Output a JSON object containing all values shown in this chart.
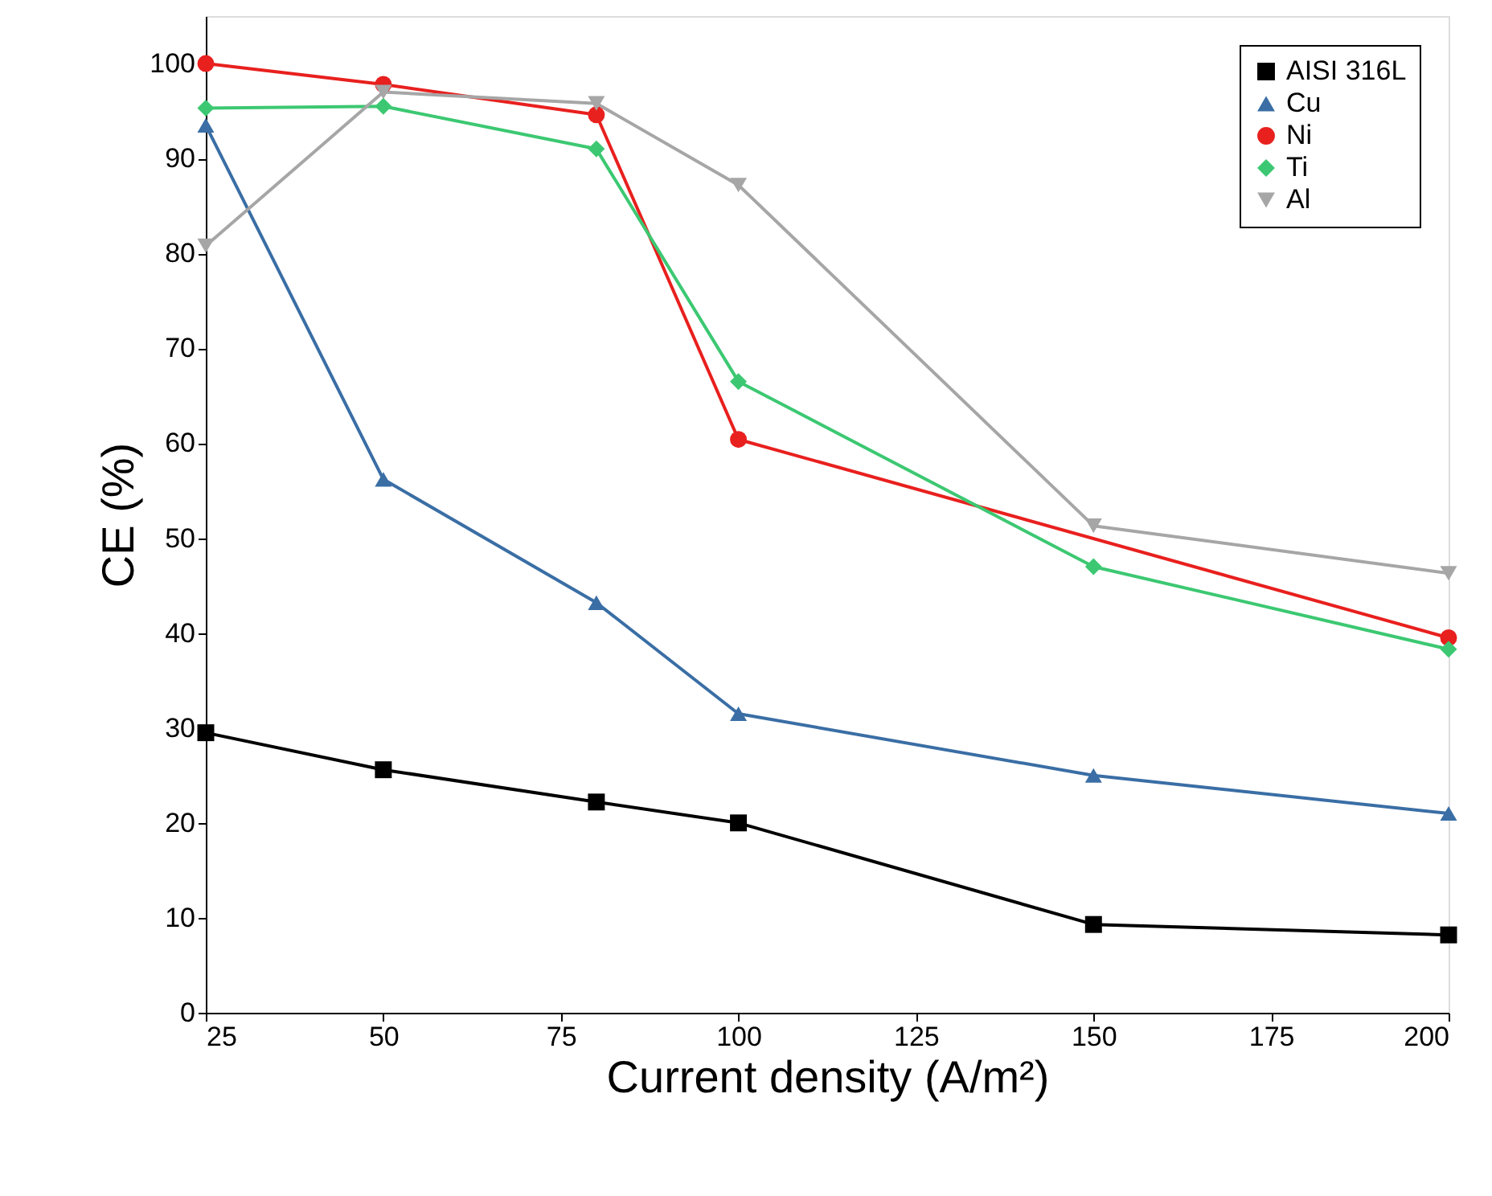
{
  "chart_data": {
    "type": "line",
    "xlabel": "Current density (A/m²)",
    "ylabel": "CE (%)",
    "x": [
      25,
      50,
      80,
      100,
      150,
      200
    ],
    "series": [
      {
        "name": "AISI 316L",
        "color": "#000000",
        "marker": "square",
        "values": [
          29.5,
          25.6,
          22.2,
          20,
          9.3,
          8.2
        ]
      },
      {
        "name": "Cu",
        "color": "#3a6ea5",
        "marker": "triangle",
        "values": [
          93.5,
          56.2,
          43.2,
          31.5,
          25,
          21
        ]
      },
      {
        "name": "Ni",
        "color": "#e8201e",
        "marker": "circle",
        "x": [
          25,
          50,
          80,
          100,
          200
        ],
        "values": [
          100,
          97.8,
          94.6,
          60.4,
          39.5
        ]
      },
      {
        "name": "Ti",
        "color": "#3cc872",
        "marker": "diamond",
        "values": [
          95.3,
          95.5,
          91,
          66.5,
          47,
          38.3
        ]
      },
      {
        "name": "Al",
        "color": "#a6a6a6",
        "marker": "triangle-down",
        "values": [
          80.8,
          97,
          95.8,
          87.2,
          51.3,
          46.3
        ]
      }
    ],
    "xlim": [
      25,
      200
    ],
    "xticks": [
      25,
      50,
      75,
      100,
      125,
      150,
      175,
      200
    ],
    "ylim": [
      0,
      105
    ],
    "yticks": [
      0,
      10,
      20,
      30,
      40,
      50,
      60,
      70,
      80,
      90,
      100
    ],
    "grid": false,
    "legend": "top right"
  }
}
